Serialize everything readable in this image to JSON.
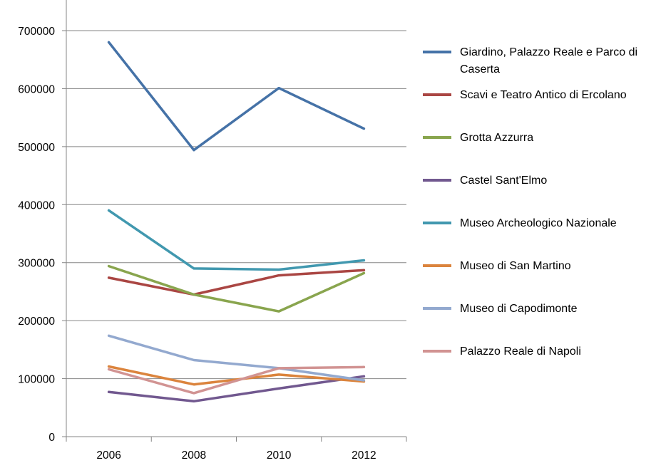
{
  "chart_data": {
    "type": "line",
    "title": "",
    "xlabel": "",
    "ylabel": "",
    "categories": [
      "2006",
      "2008",
      "2010",
      "2012"
    ],
    "ylim": [
      0,
      700000
    ],
    "yticks": [
      "0",
      "100000",
      "200000",
      "300000",
      "400000",
      "500000",
      "600000",
      "700000"
    ],
    "grid": true,
    "legend_position": "right",
    "series": [
      {
        "name": "Giardino, Palazzo Reale e Parco di Caserta",
        "color": "#4572A7",
        "values": [
          680000,
          494000,
          601000,
          531000
        ]
      },
      {
        "name": "Scavi e Teatro Antico di Ercolano",
        "color": "#AA4643",
        "values": [
          274000,
          245000,
          278000,
          287000
        ]
      },
      {
        "name": "Grotta Azzurra",
        "color": "#89A54E",
        "values": [
          294000,
          245000,
          216000,
          282000
        ]
      },
      {
        "name": "Castel Sant'Elmo",
        "color": "#71588F",
        "values": [
          77000,
          61000,
          83000,
          104000
        ]
      },
      {
        "name": "Museo Archeologico Nazionale",
        "color": "#4198AF",
        "values": [
          390000,
          290000,
          288000,
          304000
        ]
      },
      {
        "name": "Museo di San Martino",
        "color": "#DB843D",
        "values": [
          121000,
          90000,
          107000,
          95000
        ]
      },
      {
        "name": "Museo di Capodimonte",
        "color": "#93A9CF",
        "values": [
          174000,
          132000,
          118000,
          97000
        ]
      },
      {
        "name": "Palazzo Reale di Napoli",
        "color": "#D19392",
        "values": [
          116000,
          75000,
          118000,
          120000
        ]
      }
    ]
  }
}
